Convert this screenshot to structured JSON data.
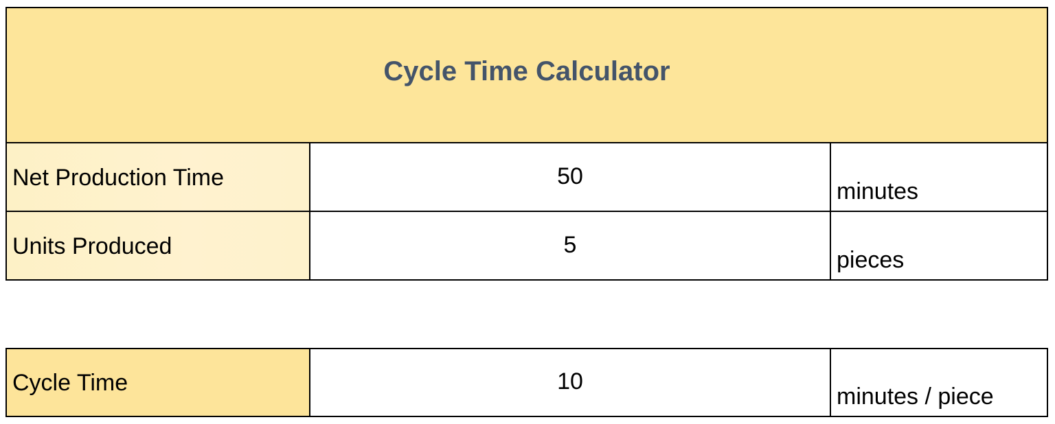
{
  "calculator": {
    "title": "Cycle Time Calculator",
    "inputs": [
      {
        "label": "Net Production Time",
        "value": "50",
        "unit": "minutes"
      },
      {
        "label": "Units Produced",
        "value": "5",
        "unit": "pieces"
      }
    ],
    "result": {
      "label": "Cycle Time",
      "value": "10",
      "unit": "minutes / piece"
    }
  },
  "colors": {
    "header_background": "#fde59a",
    "header_text": "#44546a",
    "label_background": "#fef2cc",
    "result_label_background": "#fde49a",
    "border": "#000000"
  }
}
